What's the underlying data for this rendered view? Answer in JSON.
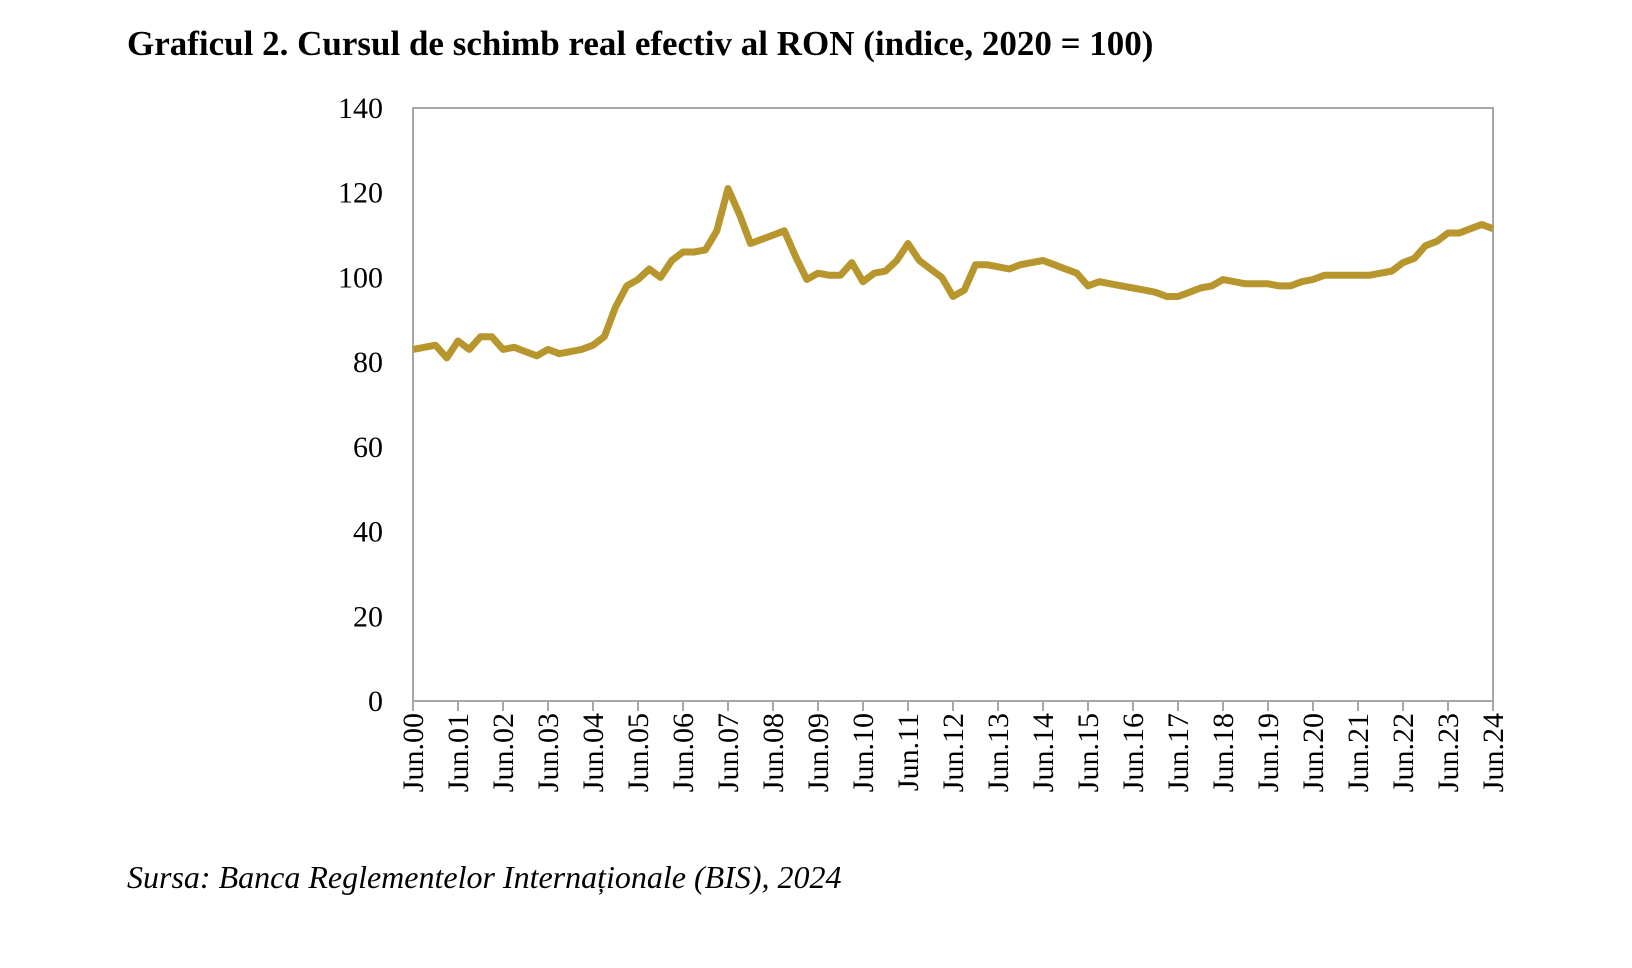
{
  "chart_data": {
    "type": "line",
    "title": "Graficul 2. Cursul de schimb real efectiv al RON (indice, 2020 = 100)",
    "source": "Sursa: Banca Reglementelor Internaționale (BIS), 2024",
    "categories": [
      "Jun.00",
      null,
      null,
      null,
      "Jun.01",
      null,
      null,
      null,
      "Jun.02",
      null,
      null,
      null,
      "Jun.03",
      null,
      null,
      null,
      "Jun.04",
      null,
      null,
      null,
      "Jun.05",
      null,
      null,
      null,
      "Jun.06",
      null,
      null,
      null,
      "Jun.07",
      null,
      null,
      null,
      "Jun.08",
      null,
      null,
      null,
      "Jun.09",
      null,
      null,
      null,
      "Jun.10",
      null,
      null,
      null,
      "Jun.11",
      null,
      null,
      null,
      "Jun.12",
      null,
      null,
      null,
      "Jun.13",
      null,
      null,
      null,
      "Jun.14",
      null,
      null,
      null,
      "Jun.15",
      null,
      null,
      null,
      "Jun.16",
      null,
      null,
      null,
      "Jun.17",
      null,
      null,
      null,
      "Jun.18",
      null,
      null,
      null,
      "Jun.19",
      null,
      null,
      null,
      "Jun.20",
      null,
      null,
      null,
      "Jun.21",
      null,
      null,
      null,
      "Jun.22",
      null,
      null,
      null,
      "Jun.23",
      null,
      null,
      null,
      "Jun.24"
    ],
    "series": [
      {
        "color": "#b8962e",
        "values": [
          83,
          83.5,
          84,
          81,
          85,
          83,
          86,
          86,
          83,
          83.5,
          82.5,
          81.5,
          83,
          82,
          82.5,
          83,
          84,
          86,
          93,
          98,
          99.5,
          102,
          100,
          104,
          106,
          106,
          106.5,
          111,
          121,
          115,
          108,
          109,
          110,
          111,
          105,
          99.5,
          101,
          100.5,
          100.5,
          103.5,
          99,
          101,
          101.5,
          104,
          108,
          104,
          102,
          100,
          95.5,
          97,
          103,
          103,
          102.5,
          102,
          103,
          103.5,
          104,
          103,
          102,
          101,
          98,
          99,
          98.5,
          98,
          97.5,
          97,
          96.5,
          95.5,
          95.5,
          96.5,
          97.5,
          98,
          99.5,
          99,
          98.5,
          98.5,
          98.5,
          98,
          98,
          99,
          99.5,
          100.5,
          100.5,
          100.5,
          100.5,
          100.5,
          101,
          101.5,
          103.5,
          104.5,
          107.5,
          108.5,
          110.5,
          110.5,
          111.5,
          112.5,
          111.5
        ]
      }
    ],
    "ylim": [
      0,
      140
    ],
    "yticks": [
      0,
      20,
      40,
      60,
      80,
      100,
      120,
      140
    ]
  }
}
